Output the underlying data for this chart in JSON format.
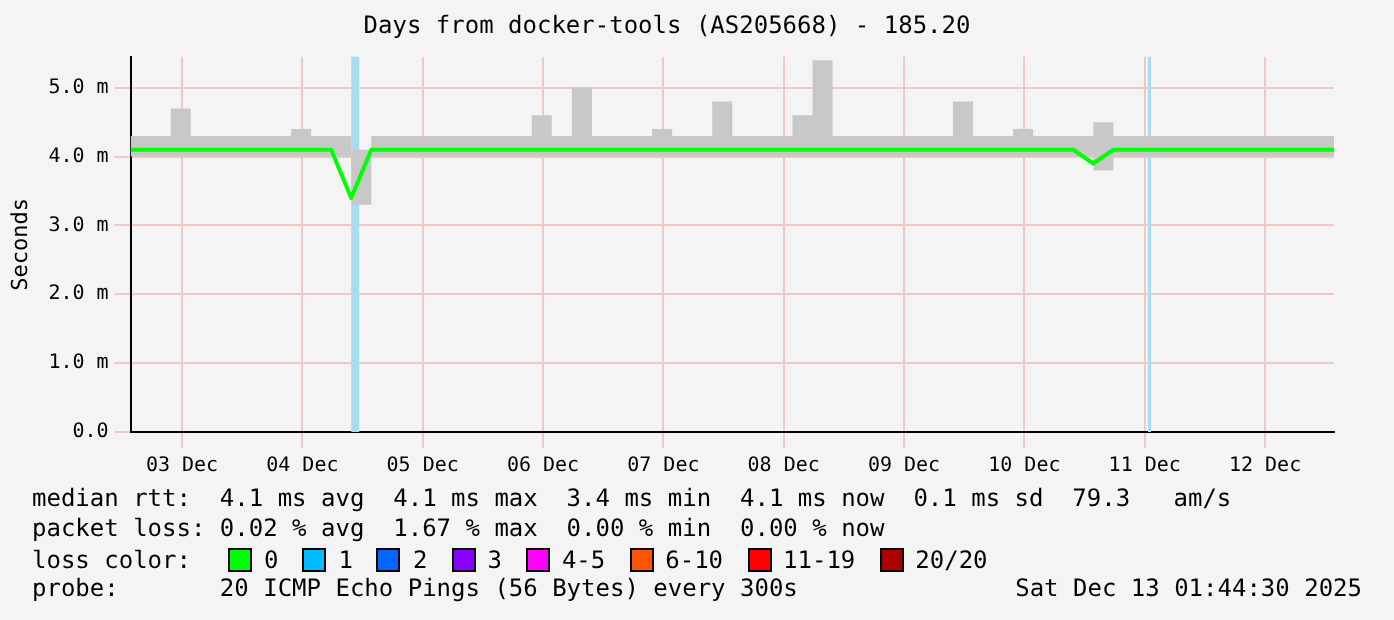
{
  "chart_data": {
    "type": "line",
    "title": "Days from docker-tools (AS205668) - 185.20",
    "ylabel": "Seconds",
    "x": [
      "2025-12-03T01:45",
      "2025-12-03T05:45",
      "2025-12-03T09:45",
      "2025-12-03T13:45",
      "2025-12-03T17:45",
      "2025-12-03T21:45",
      "2025-12-04T01:45",
      "2025-12-04T05:45",
      "2025-12-04T09:45",
      "2025-12-04T13:45",
      "2025-12-04T17:45",
      "2025-12-04T21:45",
      "2025-12-05T01:45",
      "2025-12-05T05:45",
      "2025-12-05T09:45",
      "2025-12-05T13:45",
      "2025-12-05T17:45",
      "2025-12-05T21:45",
      "2025-12-06T01:45",
      "2025-12-06T05:45",
      "2025-12-06T09:45",
      "2025-12-06T13:45",
      "2025-12-06T17:45",
      "2025-12-06T21:45",
      "2025-12-07T01:45",
      "2025-12-07T05:45",
      "2025-12-07T09:45",
      "2025-12-07T13:45",
      "2025-12-07T17:45",
      "2025-12-07T21:45",
      "2025-12-08T01:45",
      "2025-12-08T05:45",
      "2025-12-08T09:45",
      "2025-12-08T13:45",
      "2025-12-08T17:45",
      "2025-12-08T21:45",
      "2025-12-09T01:45",
      "2025-12-09T05:45",
      "2025-12-09T09:45",
      "2025-12-09T13:45",
      "2025-12-09T17:45",
      "2025-12-09T21:45",
      "2025-12-10T01:45",
      "2025-12-10T05:45",
      "2025-12-10T09:45",
      "2025-12-10T13:45",
      "2025-12-10T17:45",
      "2025-12-10T21:45",
      "2025-12-11T01:45",
      "2025-12-11T05:45",
      "2025-12-11T09:45",
      "2025-12-11T13:45",
      "2025-12-11T17:45",
      "2025-12-11T21:45",
      "2025-12-12T01:45",
      "2025-12-12T05:45",
      "2025-12-12T09:45",
      "2025-12-12T13:45",
      "2025-12-12T17:45",
      "2025-12-12T21:45",
      "2025-12-13T01:45"
    ],
    "series": [
      {
        "color": "#00ff00",
        "values": [
          4.1,
          4.1,
          4.1,
          4.1,
          4.1,
          4.1,
          4.1,
          4.1,
          4.1,
          4.1,
          4.1,
          3.4,
          4.1,
          4.1,
          4.1,
          4.1,
          4.1,
          4.1,
          4.1,
          4.1,
          4.1,
          4.1,
          4.1,
          4.1,
          4.1,
          4.1,
          4.1,
          4.1,
          4.1,
          4.1,
          4.1,
          4.1,
          4.1,
          4.1,
          4.1,
          4.1,
          4.1,
          4.1,
          4.1,
          4.1,
          4.1,
          4.1,
          4.1,
          4.1,
          4.1,
          4.1,
          4.1,
          4.1,
          3.9,
          4.1,
          4.1,
          4.1,
          4.1,
          4.1,
          4.1,
          4.1,
          4.1,
          4.1,
          4.1,
          4.1,
          4.1
        ],
        "lower": [
          4.0,
          4.0,
          4.0,
          4.0,
          4.0,
          4.0,
          4.0,
          4.0,
          4.0,
          4.0,
          4.0,
          3.3,
          4.0,
          4.0,
          4.0,
          4.0,
          4.0,
          4.0,
          4.0,
          4.0,
          4.0,
          4.0,
          4.0,
          4.0,
          4.0,
          4.0,
          4.0,
          4.0,
          4.0,
          4.0,
          4.0,
          4.0,
          4.0,
          4.0,
          4.0,
          4.0,
          4.0,
          4.0,
          4.0,
          4.0,
          4.0,
          4.0,
          4.0,
          4.0,
          4.0,
          4.0,
          4.0,
          4.0,
          3.8,
          4.0,
          4.0,
          4.0,
          4.0,
          4.0,
          4.0,
          4.0,
          4.0,
          4.0,
          4.0,
          4.0,
          4.0
        ],
        "upper": [
          4.3,
          4.3,
          4.7,
          4.3,
          4.3,
          4.3,
          4.3,
          4.3,
          4.4,
          4.3,
          4.3,
          4.1,
          4.3,
          4.3,
          4.3,
          4.3,
          4.3,
          4.3,
          4.3,
          4.3,
          4.6,
          4.3,
          5.0,
          4.3,
          4.3,
          4.3,
          4.4,
          4.3,
          4.3,
          4.8,
          4.3,
          4.3,
          4.3,
          4.6,
          5.4,
          4.3,
          4.3,
          4.3,
          4.3,
          4.3,
          4.3,
          4.8,
          4.3,
          4.3,
          4.4,
          4.3,
          4.3,
          4.3,
          4.5,
          4.3,
          4.3,
          4.3,
          4.3,
          4.3,
          4.3,
          4.3,
          4.3,
          4.3,
          4.3,
          4.3,
          4.3
        ]
      }
    ],
    "xlim": [
      "2025-12-03T01:45",
      "2025-12-13T01:45"
    ],
    "xticks": [
      {
        "value": "2025-12-03T12:00",
        "label": "03 Dec"
      },
      {
        "value": "2025-12-04T12:00",
        "label": "04 Dec"
      },
      {
        "value": "2025-12-05T12:00",
        "label": "05 Dec"
      },
      {
        "value": "2025-12-06T12:00",
        "label": "06 Dec"
      },
      {
        "value": "2025-12-07T12:00",
        "label": "07 Dec"
      },
      {
        "value": "2025-12-08T12:00",
        "label": "08 Dec"
      },
      {
        "value": "2025-12-09T12:00",
        "label": "09 Dec"
      },
      {
        "value": "2025-12-10T12:00",
        "label": "10 Dec"
      },
      {
        "value": "2025-12-11T12:00",
        "label": "11 Dec"
      },
      {
        "value": "2025-12-12T12:00",
        "label": "12 Dec"
      }
    ],
    "ylim": [
      0,
      5.45
    ],
    "yticks": [
      {
        "value": 0,
        "label": "0.0"
      },
      {
        "value": 1,
        "label": "1.0 m"
      },
      {
        "value": 2,
        "label": "2.0 m"
      },
      {
        "value": 3,
        "label": "3.0 m"
      },
      {
        "value": 4,
        "label": "4.0 m"
      },
      {
        "value": 5,
        "label": "5.0 m"
      }
    ],
    "grid": true,
    "bands": [
      {
        "axis": "x",
        "from": "2025-12-04T21:45",
        "to": "2025-12-04T23:21",
        "color": "#a8dcf0"
      }
    ],
    "ref_lines": [
      {
        "axis": "x",
        "value": "2025-12-11T12:57",
        "color": "#a8dcf0"
      }
    ],
    "annotations": [
      "median rtt:  4.1 ms avg  4.1 ms max  3.4 ms min  4.1 ms now  0.1 ms sd  79.3   am/s",
      "packet loss: 0.02 % avg  1.67 % max  0.00 % min  0.00 % now",
      "loss color:",
      "0",
      "1",
      "2",
      "3",
      "4-5",
      "6-10",
      "11-19",
      "20/20",
      "probe:       20 ICMP Echo Pings (56 Bytes) every 300s",
      "Sat Dec 13 01:44:30 2025"
    ]
  }
}
